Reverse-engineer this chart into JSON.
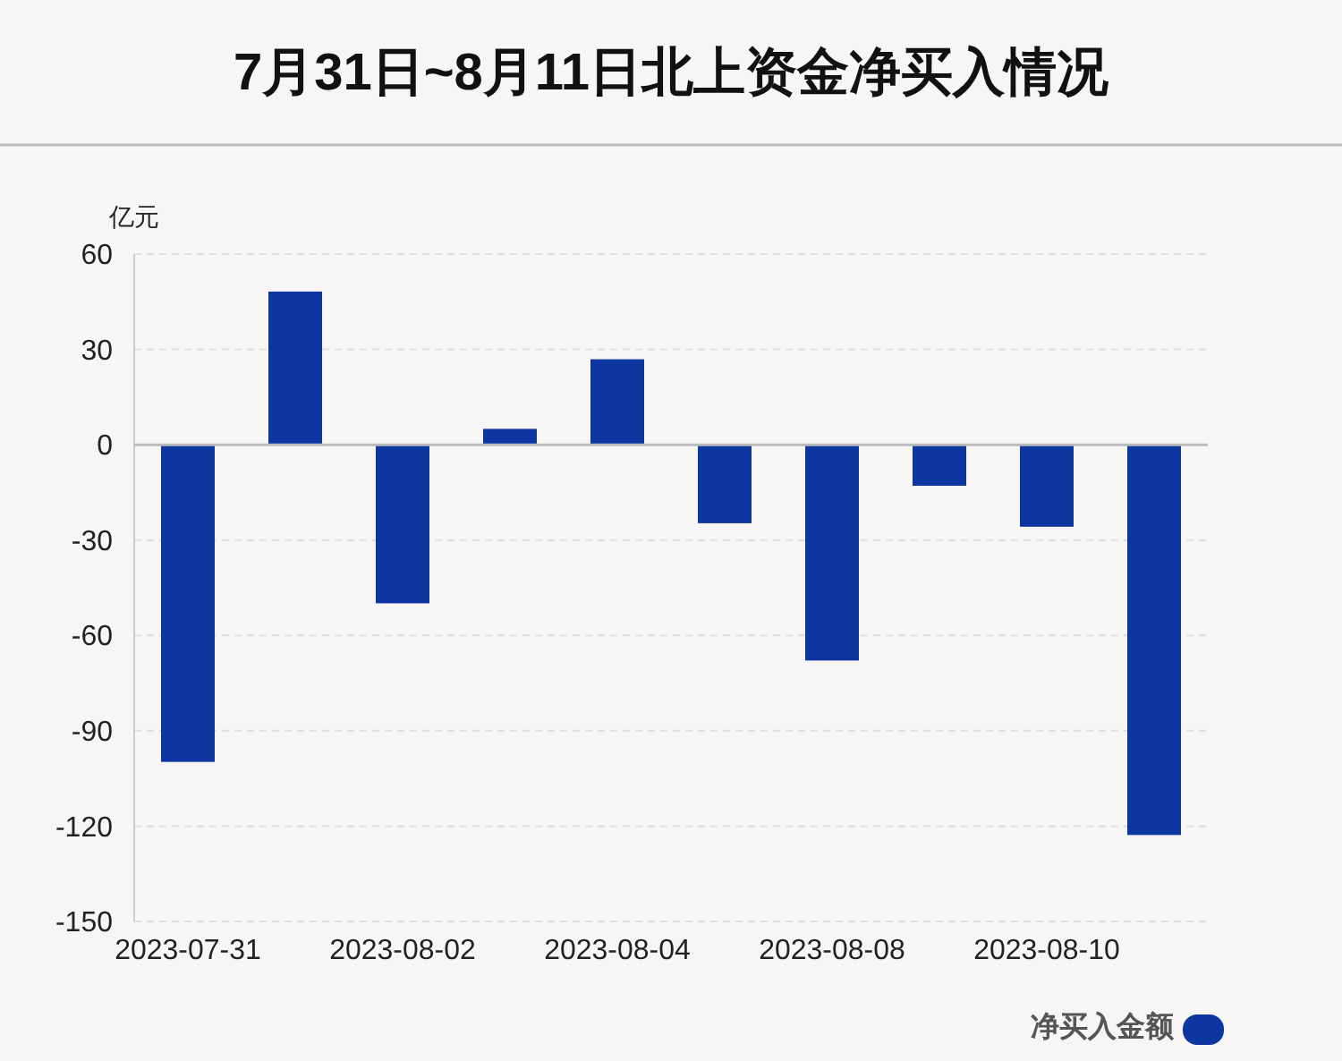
{
  "chart_data": {
    "type": "bar",
    "title": "7月31日~8月11日北上资金净买入情况",
    "ylabel": "亿元",
    "categories": [
      "2023-07-31",
      null,
      "2023-08-02",
      null,
      "2023-08-04",
      null,
      "2023-08-08",
      null,
      "2023-08-10",
      null
    ],
    "series": [
      {
        "name": "净买入金额",
        "color": "#0d36a0",
        "values": [
          -99.8,
          48.2,
          -49.9,
          5.0,
          26.9,
          -24.7,
          -67.9,
          -12.9,
          -25.8,
          -122.8
        ]
      }
    ],
    "ylim": [
      -150,
      60
    ],
    "yticks": [
      -150,
      -120,
      -90,
      -60,
      -30,
      0,
      30,
      60
    ],
    "grid": "y",
    "legend": "bottom right"
  }
}
